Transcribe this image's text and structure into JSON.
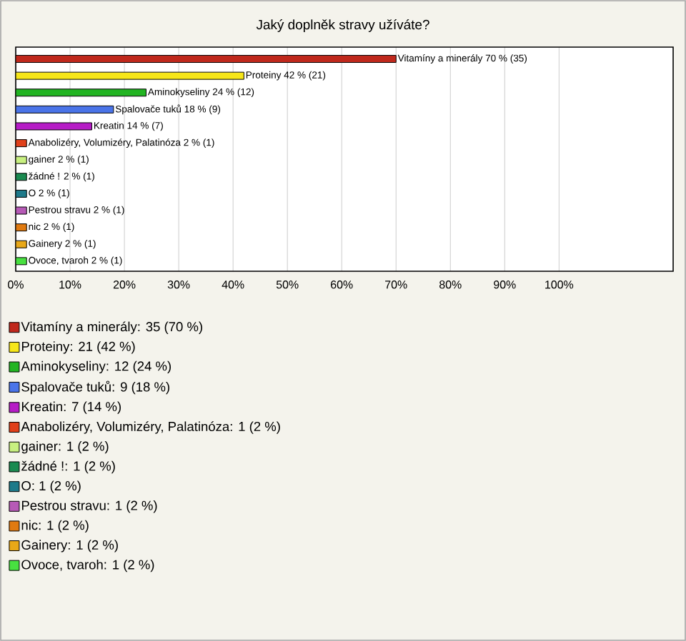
{
  "chart_data": {
    "type": "bar",
    "orientation": "horizontal",
    "title": "Jaký doplněk stravy užíváte?",
    "categories": [
      null,
      null,
      null,
      null,
      null,
      null,
      null,
      null,
      null,
      null,
      null,
      null,
      null
    ],
    "series": [
      {
        "name": "Vitamíny a minerály: 35 (70 %)",
        "color": "#c0281c",
        "values": [
          70,
          null,
          null,
          null,
          null,
          null,
          null,
          null,
          null,
          null,
          null,
          null,
          null
        ],
        "value_labels": [
          "Vitamíny a minerály 70 % (35)",
          null,
          null,
          null,
          null,
          null,
          null,
          null,
          null,
          null,
          null,
          null,
          null
        ]
      },
      {
        "name": "Proteiny: 21 (42 %)",
        "color": "#f6e619",
        "values": [
          null,
          42,
          null,
          null,
          null,
          null,
          null,
          null,
          null,
          null,
          null,
          null,
          null
        ],
        "value_labels": [
          null,
          "Proteiny 42 % (21)",
          null,
          null,
          null,
          null,
          null,
          null,
          null,
          null,
          null,
          null,
          null
        ]
      },
      {
        "name": "Aminokyseliny: 12 (24 %)",
        "color": "#22b422",
        "values": [
          null,
          null,
          24,
          null,
          null,
          null,
          null,
          null,
          null,
          null,
          null,
          null,
          null
        ],
        "value_labels": [
          null,
          null,
          "Aminokyseliny 24 % (12)",
          null,
          null,
          null,
          null,
          null,
          null,
          null,
          null,
          null,
          null
        ]
      },
      {
        "name": "Spalovače tuků: 9 (18 %)",
        "color": "#4a74e8",
        "values": [
          null,
          null,
          null,
          18,
          null,
          null,
          null,
          null,
          null,
          null,
          null,
          null,
          null
        ],
        "value_labels": [
          null,
          null,
          null,
          "Spalovače tuků 18 % (9)",
          null,
          null,
          null,
          null,
          null,
          null,
          null,
          null,
          null
        ]
      },
      {
        "name": "Kreatin: 7 (14 %)",
        "color": "#b61cc6",
        "values": [
          null,
          null,
          null,
          null,
          14,
          null,
          null,
          null,
          null,
          null,
          null,
          null,
          null
        ],
        "value_labels": [
          null,
          null,
          null,
          null,
          "Kreatin 14 % (7)",
          null,
          null,
          null,
          null,
          null,
          null,
          null,
          null
        ]
      },
      {
        "name": "Anabolizéry, Volumizéry, Palatinóza: 1 (2 %)",
        "color": "#e0401a",
        "values": [
          null,
          null,
          null,
          null,
          null,
          2,
          null,
          null,
          null,
          null,
          null,
          null,
          null
        ],
        "value_labels": [
          null,
          null,
          null,
          null,
          null,
          "Anabolizéry, Volumizéry, Palatinóza 2 % (1)",
          null,
          null,
          null,
          null,
          null,
          null,
          null
        ]
      },
      {
        "name": "gainer: 1 (2 %)",
        "color": "#c8f080",
        "values": [
          null,
          null,
          null,
          null,
          null,
          null,
          2,
          null,
          null,
          null,
          null,
          null,
          null
        ],
        "value_labels": [
          null,
          null,
          null,
          null,
          null,
          null,
          "gainer 2 % (1)",
          null,
          null,
          null,
          null,
          null,
          null
        ]
      },
      {
        "name": "žádné !: 1 (2 %)",
        "color": "#1a8a50",
        "values": [
          null,
          null,
          null,
          null,
          null,
          null,
          null,
          2,
          null,
          null,
          null,
          null,
          null
        ],
        "value_labels": [
          null,
          null,
          null,
          null,
          null,
          null,
          null,
          "žádné ! 2 % (1)",
          null,
          null,
          null,
          null,
          null
        ]
      },
      {
        "name": "O: 1 (2 %)",
        "color": "#1e7a8a",
        "values": [
          null,
          null,
          null,
          null,
          null,
          null,
          null,
          null,
          2,
          null,
          null,
          null,
          null
        ],
        "value_labels": [
          null,
          null,
          null,
          null,
          null,
          null,
          null,
          null,
          "O 2 % (1)",
          null,
          null,
          null,
          null
        ]
      },
      {
        "name": "Pestrou stravu: 1 (2 %)",
        "color": "#b65ab6",
        "values": [
          null,
          null,
          null,
          null,
          null,
          null,
          null,
          null,
          null,
          2,
          null,
          null,
          null
        ],
        "value_labels": [
          null,
          null,
          null,
          null,
          null,
          null,
          null,
          null,
          null,
          "Pestrou stravu 2 % (1)",
          null,
          null,
          null
        ]
      },
      {
        "name": "nic: 1 (2 %)",
        "color": "#e07a10",
        "values": [
          null,
          null,
          null,
          null,
          null,
          null,
          null,
          null,
          null,
          null,
          2,
          null,
          null
        ],
        "value_labels": [
          null,
          null,
          null,
          null,
          null,
          null,
          null,
          null,
          null,
          null,
          "nic 2 % (1)",
          null,
          null
        ]
      },
      {
        "name": "Gainery: 1 (2 %)",
        "color": "#e8a818",
        "values": [
          null,
          null,
          null,
          null,
          null,
          null,
          null,
          null,
          null,
          null,
          null,
          2,
          null
        ],
        "value_labels": [
          null,
          null,
          null,
          null,
          null,
          null,
          null,
          null,
          null,
          null,
          null,
          "Gainery 2 % (1)",
          null
        ]
      },
      {
        "name": "Ovoce, tvaroh: 1 (2 %)",
        "color": "#48e040",
        "values": [
          null,
          null,
          null,
          null,
          null,
          null,
          null,
          null,
          null,
          null,
          null,
          null,
          2
        ],
        "value_labels": [
          null,
          null,
          null,
          null,
          null,
          null,
          null,
          null,
          null,
          null,
          null,
          null,
          "Ovoce, tvaroh 2 % (1)"
        ]
      }
    ],
    "xlim": [
      0,
      121
    ],
    "xticks": [
      {
        "value": 0,
        "label": "0%"
      },
      {
        "value": 10,
        "label": "10%"
      },
      {
        "value": 20,
        "label": "20%"
      },
      {
        "value": 30,
        "label": "30%"
      },
      {
        "value": 40,
        "label": "40%"
      },
      {
        "value": 50,
        "label": "50%"
      },
      {
        "value": 60,
        "label": "60%"
      },
      {
        "value": 70,
        "label": "70%"
      },
      {
        "value": 80,
        "label": "80%"
      },
      {
        "value": 90,
        "label": "90%"
      },
      {
        "value": 100,
        "label": "100%"
      }
    ],
    "grid": "x",
    "legend": "bottom"
  }
}
